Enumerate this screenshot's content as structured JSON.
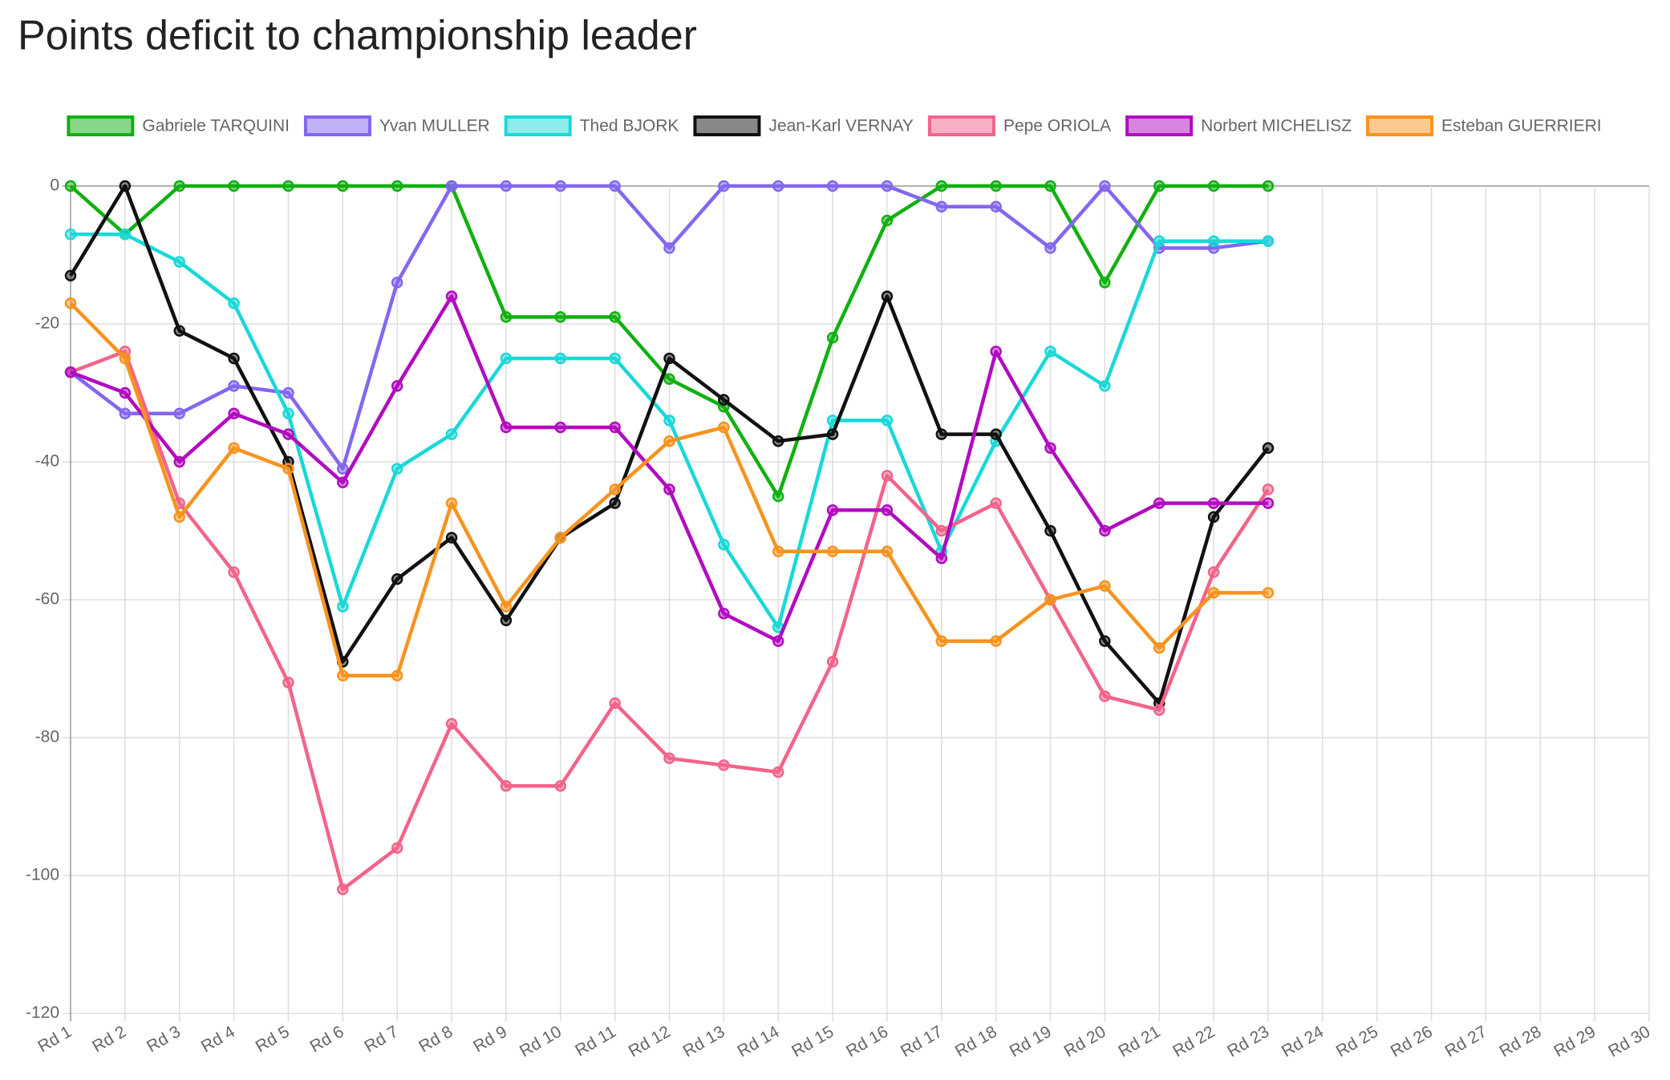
{
  "chart_data": {
    "type": "line",
    "title": "Points deficit to championship leader",
    "categories": [
      "Rd 1",
      "Rd 2",
      "Rd 3",
      "Rd 4",
      "Rd 5",
      "Rd 6",
      "Rd 7",
      "Rd 8",
      "Rd 9",
      "Rd 10",
      "Rd 11",
      "Rd 12",
      "Rd 13",
      "Rd 14",
      "Rd 15",
      "Rd 16",
      "Rd 17",
      "Rd 18",
      "Rd 19",
      "Rd 20",
      "Rd 21",
      "Rd 22",
      "Rd 23",
      "Rd 24",
      "Rd 25",
      "Rd 26",
      "Rd 27",
      "Rd 28",
      "Rd 29",
      "Rd 30"
    ],
    "series": [
      {
        "name": "Gabriele TARQUINI",
        "color": "#11b011",
        "values": [
          0,
          -7,
          0,
          0,
          0,
          0,
          0,
          0,
          -19,
          -19,
          -19,
          -28,
          -32,
          -45,
          -22,
          -5,
          0,
          0,
          0,
          -14,
          0,
          0,
          0,
          null,
          null,
          null,
          null,
          null,
          null,
          null
        ]
      },
      {
        "name": "Yvan MULLER",
        "color": "#8466f0",
        "values": [
          -27,
          -33,
          -33,
          -29,
          -30,
          -41,
          -14,
          0,
          0,
          0,
          0,
          -9,
          0,
          0,
          0,
          0,
          -3,
          -3,
          -9,
          0,
          -9,
          -9,
          -8,
          null,
          null,
          null,
          null,
          null,
          null,
          null
        ]
      },
      {
        "name": "Thed BJORK",
        "color": "#1ad8d8",
        "values": [
          -7,
          -7,
          -11,
          -17,
          -33,
          -61,
          -41,
          -36,
          -25,
          -25,
          -25,
          -34,
          -52,
          -64,
          -34,
          -34,
          -53,
          -37,
          -24,
          -29,
          -8,
          -8,
          -8,
          null,
          null,
          null,
          null,
          null,
          null,
          null
        ]
      },
      {
        "name": "Jean-Karl VERNAY",
        "color": "#111111",
        "values": [
          -13,
          0,
          -21,
          -25,
          -40,
          -69,
          -57,
          -51,
          -63,
          -51,
          -46,
          -25,
          -31,
          -37,
          -36,
          -16,
          -36,
          -36,
          -50,
          -66,
          -75,
          -48,
          -38,
          null,
          null,
          null,
          null,
          null,
          null,
          null
        ]
      },
      {
        "name": "Pepe ORIOLA",
        "color": "#f2648a",
        "values": [
          -27,
          -24,
          -46,
          -56,
          -72,
          -102,
          -96,
          -78,
          -87,
          -87,
          -75,
          -83,
          -84,
          -85,
          -69,
          -42,
          -50,
          -46,
          -60,
          -74,
          -76,
          -56,
          -44,
          null,
          null,
          null,
          null,
          null,
          null,
          null
        ]
      },
      {
        "name": "Norbert MICHELISZ",
        "color": "#b10cc0",
        "values": [
          -27,
          -30,
          -40,
          -33,
          -36,
          -43,
          -29,
          -16,
          -35,
          -35,
          -35,
          -44,
          -62,
          -66,
          -47,
          -47,
          -54,
          -24,
          -38,
          -50,
          -46,
          -46,
          -46,
          null,
          null,
          null,
          null,
          null,
          null,
          null
        ]
      },
      {
        "name": "Esteban GUERRIERI",
        "color": "#f7931e",
        "values": [
          -17,
          -25,
          -48,
          -38,
          -41,
          -71,
          -71,
          -46,
          -61,
          -51,
          -44,
          -37,
          -35,
          -53,
          -53,
          -53,
          -66,
          -66,
          -60,
          -58,
          -67,
          -59,
          -59,
          null,
          null,
          null,
          null,
          null,
          null,
          null
        ]
      }
    ],
    "ylim": [
      -120,
      0
    ],
    "yticks": [
      0,
      -20,
      -40,
      -60,
      -80,
      -100,
      -120
    ],
    "grid": true,
    "legend": "top"
  }
}
